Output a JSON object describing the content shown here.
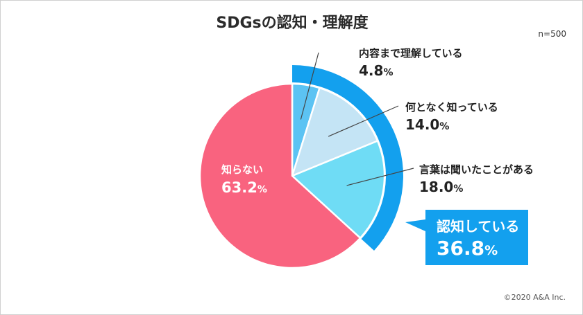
{
  "chart_data": {
    "type": "pie",
    "title": "SDGsの認知・理解度",
    "sample_size": "n=500",
    "percent_unit": "%",
    "slices": [
      {
        "label": "内容まで理解している",
        "value": 4.8,
        "value_text": "4.8",
        "color": "#5cc3f3"
      },
      {
        "label": "何となく知っている",
        "value": 14.0,
        "value_text": "14.0",
        "color": "#c4e4f5"
      },
      {
        "label": "言葉は聞いたことがある",
        "value": 18.0,
        "value_text": "18.0",
        "color": "#6fdcf5"
      },
      {
        "label": "知らない",
        "value": 63.2,
        "value_text": "63.2",
        "color": "#f9637f"
      }
    ],
    "group": {
      "label": "認知している",
      "value": 36.8,
      "value_text": "36.8",
      "color": "#13a0ee"
    }
  },
  "copyright": "©2020 A&A Inc."
}
